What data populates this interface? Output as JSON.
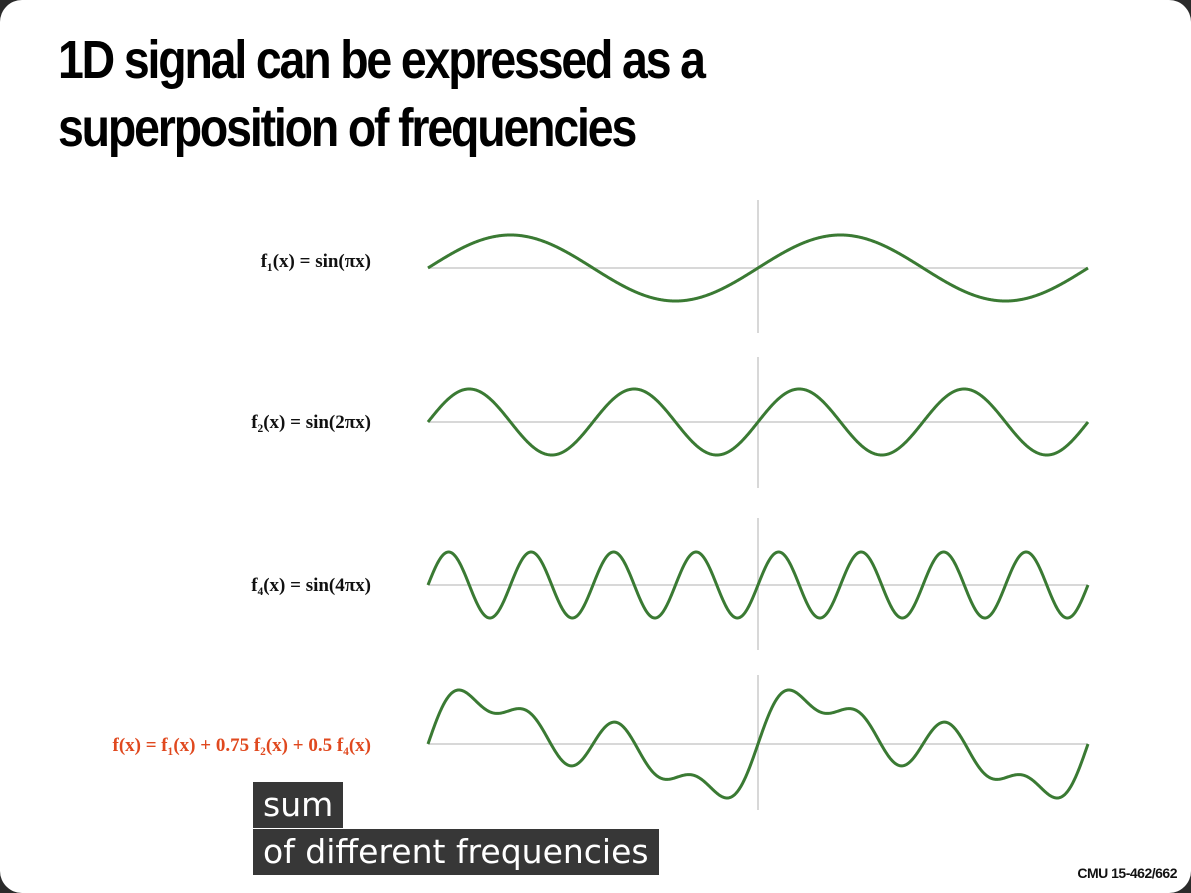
{
  "slide": {
    "title_line1": "1D signal can be expressed as a",
    "title_line2": "superposition of frequencies",
    "footer": "CMU 15-462/662"
  },
  "captions": {
    "line1": "sum",
    "line2": "of different frequencies"
  },
  "colors": {
    "wave": "#3a7a33",
    "axis": "#cccccc",
    "sum_formula": "#e0491f"
  },
  "chart_data": {
    "type": "line",
    "x_range": [
      -2,
      2
    ],
    "grid": false,
    "series": [
      {
        "formula": "f₁(x) = sin(πx)",
        "expression": "sin(pi*x)",
        "terms": [
          {
            "coef": 1,
            "freq": 1
          }
        ]
      },
      {
        "formula": "f₂(x) = sin(2πx)",
        "expression": "sin(2*pi*x)",
        "terms": [
          {
            "coef": 1,
            "freq": 2
          }
        ]
      },
      {
        "formula": "f₄(x) = sin(4πx)",
        "expression": "sin(4*pi*x)",
        "terms": [
          {
            "coef": 1,
            "freq": 4
          }
        ]
      },
      {
        "formula": "f(x) = f₁(x) + 0.75 f₂(x) + 0.5 f₄(x)",
        "expression": "sin(pi*x) + 0.75*sin(2*pi*x) + 0.5*sin(4*pi*x)",
        "terms": [
          {
            "coef": 1,
            "freq": 1
          },
          {
            "coef": 0.75,
            "freq": 2
          },
          {
            "coef": 0.5,
            "freq": 4
          }
        ],
        "highlight": true
      }
    ]
  }
}
